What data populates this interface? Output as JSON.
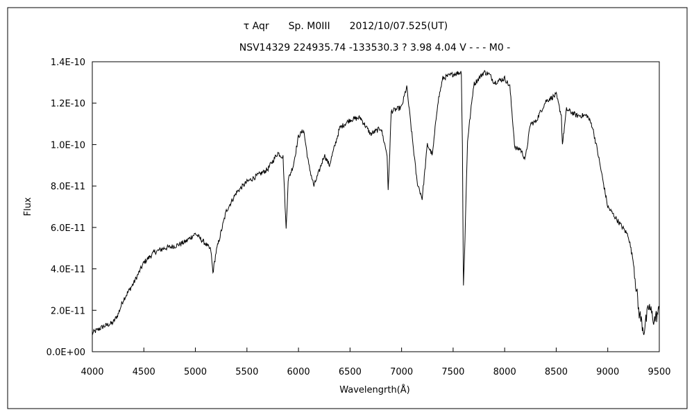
{
  "chart_data": {
    "type": "line",
    "title": "τ Aqr　　Sp. M0III　　2012/10/07.525(UT)",
    "subtitle": "NSV14329 224935.74 -133530.3 ? 3.98 4.04 V - - - M0 -",
    "xlabel": "Wavelengrth(Å)",
    "ylabel": "Flux",
    "xlim": [
      4000,
      9500
    ],
    "ylim": [
      0,
      1.4e-10
    ],
    "x_ticks": [
      "4000",
      "4500",
      "5000",
      "5500",
      "6000",
      "6500",
      "7000",
      "7500",
      "8000",
      "8500",
      "9000",
      "9500"
    ],
    "y_ticks": [
      "0.0E+00",
      "2.0E-11",
      "4.0E-11",
      "6.0E-11",
      "8.0E-11",
      "1.0E-10",
      "1.2E-10",
      "1.4E-10"
    ],
    "grid": false,
    "legend": "none",
    "series": [
      {
        "color": "#000000",
        "x": [
          4000,
          4100,
          4200,
          4250,
          4300,
          4400,
          4500,
          4600,
          4700,
          4800,
          4900,
          5000,
          5100,
          5150,
          5170,
          5200,
          5300,
          5400,
          5500,
          5600,
          5700,
          5800,
          5850,
          5880,
          5900,
          5950,
          6000,
          6050,
          6100,
          6150,
          6200,
          6250,
          6300,
          6400,
          6500,
          6600,
          6700,
          6800,
          6860,
          6870,
          6900,
          7000,
          7050,
          7100,
          7150,
          7200,
          7250,
          7300,
          7350,
          7400,
          7500,
          7580,
          7590,
          7600,
          7610,
          7620,
          7640,
          7700,
          7800,
          7850,
          7900,
          8000,
          8050,
          8100,
          8150,
          8200,
          8250,
          8300,
          8400,
          8500,
          8550,
          8560,
          8600,
          8700,
          8800,
          8850,
          8900,
          9000,
          9100,
          9200,
          9250,
          9300,
          9350,
          9400,
          9450,
          9500
        ],
        "y": [
          9e-12,
          1.2e-11,
          1.4e-11,
          1.8e-11,
          2.5e-11,
          3.3e-11,
          4.3e-11,
          4.8e-11,
          5e-11,
          5.1e-11,
          5.3e-11,
          5.7e-11,
          5.2e-11,
          4.9e-11,
          3.8e-11,
          4.8e-11,
          6.8e-11,
          7.7e-11,
          8.2e-11,
          8.5e-11,
          8.8e-11,
          9.6e-11,
          9.4e-11,
          5.9e-11,
          8.3e-11,
          9e-11,
          1.04e-10,
          1.07e-10,
          9e-11,
          8e-11,
          8.7e-11,
          9.5e-11,
          9e-11,
          1.08e-10,
          1.12e-10,
          1.13e-10,
          1.05e-10,
          1.08e-10,
          9.5e-11,
          7.7e-11,
          1.16e-10,
          1.18e-10,
          1.28e-10,
          1.05e-10,
          8.2e-11,
          7.4e-11,
          1e-10,
          9.5e-11,
          1.2e-10,
          1.32e-10,
          1.34e-10,
          1.35e-10,
          1e-10,
          3.2e-11,
          4.5e-11,
          6.5e-11,
          1.02e-10,
          1.29e-10,
          1.35e-10,
          1.34e-10,
          1.3e-10,
          1.32e-10,
          1.28e-10,
          9.8e-11,
          9.8e-11,
          9.3e-11,
          1.1e-10,
          1.11e-10,
          1.21e-10,
          1.24e-10,
          1.14e-10,
          1e-10,
          1.17e-10,
          1.14e-10,
          1.14e-10,
          1.09e-10,
          9.7e-11,
          7e-11,
          6.3e-11,
          5.6e-11,
          4.3e-11,
          2e-11,
          1e-11,
          2.2e-11,
          1.5e-11,
          2e-11
        ]
      }
    ]
  }
}
